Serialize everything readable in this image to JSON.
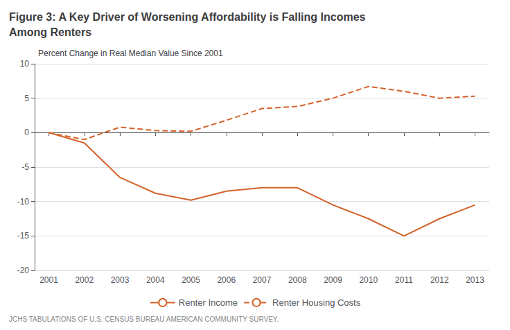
{
  "chart_data": {
    "type": "line",
    "title": [
      "Figure 3: A Key Driver of Worsening Affordability is Falling Incomes",
      "Among Renters"
    ],
    "subtitle": "Percent Change in Real Median Value Since 2001",
    "annotations": [
      "JCHS TABULATIONS OF U.S. CENSUS BUREAU AMERICAN COMMUNITY SURVEY."
    ],
    "x": [
      2001,
      2002,
      2003,
      2004,
      2005,
      2006,
      2007,
      2008,
      2009,
      2010,
      2011,
      2012,
      2013
    ],
    "series": [
      {
        "name": "Renter Income",
        "color": "#d4622a",
        "line_style": "solid",
        "values": [
          0,
          -1.5,
          -6.5,
          -8.8,
          -9.8,
          -8.5,
          -8.0,
          -8.0,
          -10.5,
          -12.5,
          -15.0,
          -12.5,
          -10.5
        ]
      },
      {
        "name": "Renter Housing Costs",
        "color": "#d4622a",
        "line_style": "dashed",
        "values": [
          0,
          -1.0,
          0.8,
          0.3,
          0.2,
          1.8,
          3.5,
          3.8,
          5.0,
          6.7,
          6.0,
          5.0,
          5.3
        ]
      }
    ],
    "xlim": [
      2000.6,
      2013.4
    ],
    "xticks": [
      2001,
      2002,
      2003,
      2004,
      2005,
      2006,
      2007,
      2008,
      2009,
      2010,
      2011,
      2012,
      2013
    ],
    "ylim": [
      -20,
      10
    ],
    "yticks": [
      -20,
      -15,
      -10,
      -5,
      0,
      5,
      10
    ],
    "grid": true,
    "legend": "bottom"
  }
}
